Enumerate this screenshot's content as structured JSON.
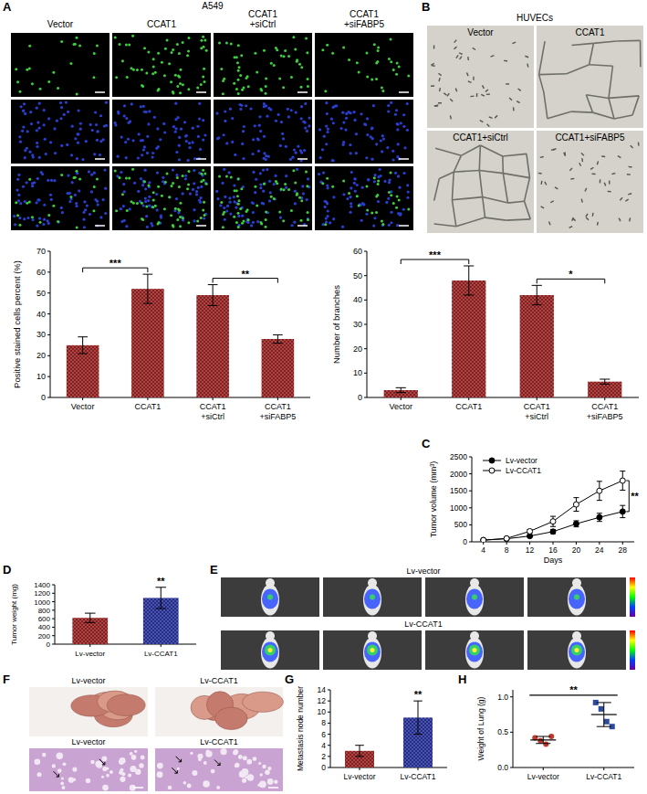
{
  "panel_letters": [
    "A",
    "B",
    "C",
    "D",
    "E",
    "F",
    "G",
    "H"
  ],
  "images": {
    "A": {
      "title": "A549",
      "columns": [
        "Vector",
        "CCAT1",
        "CCAT1 +siCtrl",
        "CCAT1 +siFABP5"
      ]
    },
    "B": {
      "title": "HUVECs",
      "captions": [
        "Vector",
        "CCAT1",
        "CCAT1+siCtrl",
        "CCAT1+siFABP5"
      ]
    },
    "E": {
      "rows": [
        "Lv-vector",
        "Lv-CCAT1"
      ]
    },
    "F": {
      "columns": [
        "Lv-vector",
        "Lv-CCAT1"
      ],
      "histology_columns": [
        "Lv-vector",
        "Lv-CCAT1"
      ]
    }
  },
  "chart_data": [
    {
      "type": "bar",
      "ylabel": "Positive stained cells percent (%)",
      "categories": [
        "Vector",
        "CCAT1",
        "CCAT1 +siCtrl",
        "CCAT1 +siFABP5"
      ],
      "values": [
        25,
        52,
        49,
        28
      ],
      "errors": [
        4,
        7,
        5,
        2
      ],
      "color": "#8b1a1a",
      "ylim": [
        0,
        70
      ],
      "yticks": [
        0,
        10,
        20,
        30,
        40,
        50,
        60,
        70
      ],
      "grid": false,
      "annotations": [
        {
          "text": "***",
          "between": [
            "Vector",
            "CCAT1"
          ]
        },
        {
          "text": "**",
          "between": [
            "CCAT1 +siCtrl",
            "CCAT1 +siFABP5"
          ]
        }
      ]
    },
    {
      "type": "bar",
      "ylabel": "Number of branches",
      "categories": [
        "Vector",
        "CCAT1",
        "CCAT1 +siCtrl",
        "CCAT1 +siFABP5"
      ],
      "values": [
        3,
        48,
        42,
        6.5
      ],
      "errors": [
        1,
        6,
        4,
        1
      ],
      "color": "#8b1a1a",
      "ylim": [
        0,
        60
      ],
      "yticks": [
        0,
        10,
        20,
        30,
        40,
        50,
        60
      ],
      "grid": false,
      "annotations": [
        {
          "text": "***",
          "between": [
            "Vector",
            "CCAT1"
          ]
        },
        {
          "text": "*",
          "between": [
            "CCAT1 +siCtrl",
            "CCAT1 +siFABP5"
          ]
        }
      ]
    },
    {
      "type": "line",
      "xlabel": "Days",
      "ylabel": "Tumor volume (mm³)",
      "x": [
        4,
        8,
        12,
        16,
        20,
        24,
        28
      ],
      "xlim": [
        2,
        30
      ],
      "xticks": [
        4,
        8,
        12,
        16,
        20,
        24,
        28
      ],
      "ylim": [
        0,
        2500
      ],
      "yticks": [
        0,
        500,
        1000,
        1500,
        2000,
        2500
      ],
      "grid": false,
      "legend": "upper left",
      "series": [
        {
          "name": "Lv-vector",
          "color": "#000000",
          "marker": "circle",
          "values": [
            50,
            90,
            170,
            300,
            530,
            720,
            890
          ],
          "errors": [
            5,
            10,
            30,
            60,
            90,
            120,
            180
          ]
        },
        {
          "name": "Lv-CCAT1",
          "color": "#000000",
          "marker": "open_circle",
          "values": [
            50,
            100,
            310,
            600,
            1100,
            1500,
            1800
          ],
          "errors": [
            5,
            15,
            50,
            150,
            200,
            280,
            280
          ]
        }
      ],
      "annotations": [
        {
          "text": "**",
          "between": [
            "Lv-vector",
            "Lv-CCAT1"
          ]
        }
      ]
    },
    {
      "type": "bar",
      "ylabel": "Tumor weight (mg)",
      "categories": [
        "Lv-vector",
        "Lv-CCAT1"
      ],
      "values": [
        620,
        1090
      ],
      "errors": [
        110,
        250
      ],
      "colors": [
        "#8b1a1a",
        "#1f2a8c"
      ],
      "ylim": [
        0,
        1400
      ],
      "yticks": [
        0,
        200,
        400,
        600,
        800,
        1000,
        1200,
        1400
      ],
      "grid": false,
      "annotations": [
        {
          "text": "**",
          "at": "Lv-CCAT1"
        }
      ]
    },
    {
      "type": "bar",
      "ylabel": "Metastasis node number",
      "categories": [
        "Lv-vector",
        "Lv-CCAT1"
      ],
      "values": [
        3,
        9
      ],
      "errors": [
        1,
        3
      ],
      "colors": [
        "#8b1a1a",
        "#1f2a8c"
      ],
      "ylim": [
        0,
        14
      ],
      "yticks": [
        0,
        2,
        4,
        6,
        8,
        10,
        12,
        14
      ],
      "grid": false,
      "annotations": [
        {
          "text": "**",
          "at": "Lv-CCAT1"
        }
      ]
    },
    {
      "type": "scatter",
      "ylabel": "Weight of Lung (g)",
      "ylim": [
        0,
        1.1
      ],
      "yticks": [
        {
          "value": 0,
          "label": "0.0"
        },
        {
          "value": 0.5,
          "label": "0.5"
        },
        {
          "value": 1,
          "label": "1.0"
        }
      ],
      "grid": false,
      "series": [
        {
          "name": "Lv-vector",
          "color": "#c0392b",
          "marker": "circle",
          "values": [
            0.42,
            0.38,
            0.33,
            0.44
          ],
          "mean": 0.39,
          "error": 0.05
        },
        {
          "name": "Lv-CCAT1",
          "color": "#2e4a9e",
          "marker": "square",
          "values": [
            0.92,
            0.83,
            0.65,
            0.58
          ],
          "mean": 0.75,
          "error": 0.17
        }
      ],
      "annotations": [
        {
          "text": "**",
          "between": [
            "Lv-vector",
            "Lv-CCAT1"
          ]
        }
      ]
    }
  ]
}
